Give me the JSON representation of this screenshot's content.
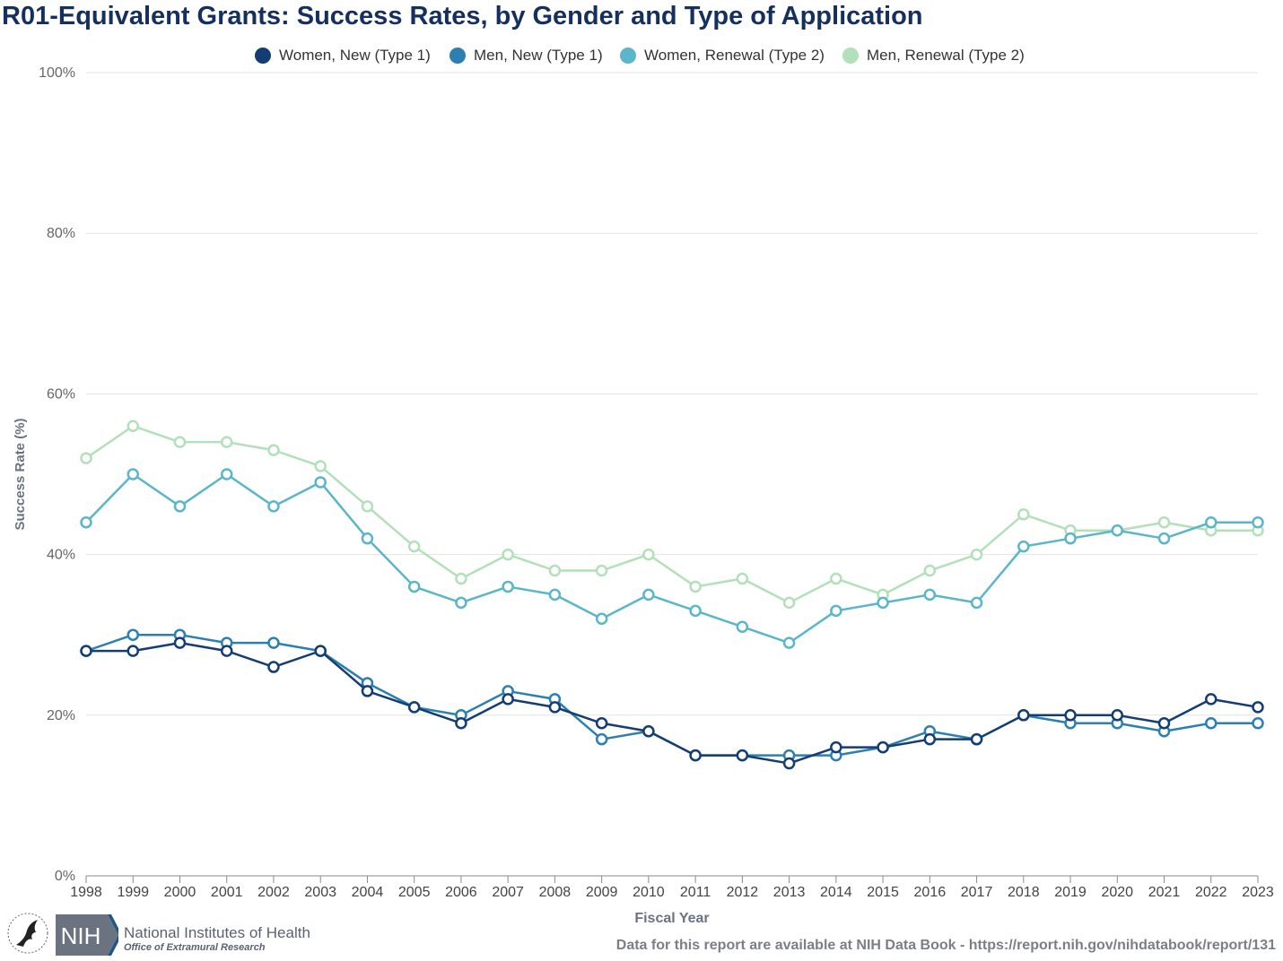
{
  "chart_data": {
    "type": "line",
    "title": "R01-Equivalent Grants: Success Rates, by Gender and Type of Application",
    "xlabel": "Fiscal Year",
    "ylabel": "Success Rate (%)",
    "ylim": [
      0,
      100
    ],
    "yticks": [
      "0%",
      "20%",
      "40%",
      "60%",
      "80%",
      "100%"
    ],
    "grid": true,
    "legend_position": "top",
    "categories": [
      "1998",
      "1999",
      "2000",
      "2001",
      "2002",
      "2003",
      "2004",
      "2005",
      "2006",
      "2007",
      "2008",
      "2009",
      "2010",
      "2011",
      "2012",
      "2013",
      "2014",
      "2015",
      "2016",
      "2017",
      "2018",
      "2019",
      "2020",
      "2021",
      "2022",
      "2023"
    ],
    "series": [
      {
        "name": "Women, New (Type 1)",
        "color": "#143d73",
        "values": [
          28,
          28,
          29,
          28,
          26,
          28,
          23,
          21,
          19,
          22,
          21,
          19,
          18,
          15,
          15,
          14,
          16,
          16,
          17,
          17,
          20,
          20,
          20,
          19,
          22,
          21
        ]
      },
      {
        "name": "Men, New (Type 1)",
        "color": "#2b7fb1",
        "values": [
          28,
          30,
          30,
          29,
          29,
          28,
          24,
          21,
          20,
          23,
          22,
          17,
          18,
          15,
          15,
          15,
          15,
          16,
          18,
          17,
          20,
          19,
          19,
          18,
          19,
          19
        ]
      },
      {
        "name": "Women, Renewal (Type 2)",
        "color": "#5ab6c8",
        "values": [
          44,
          50,
          46,
          50,
          46,
          49,
          42,
          36,
          34,
          36,
          35,
          32,
          35,
          33,
          31,
          29,
          33,
          34,
          35,
          34,
          41,
          42,
          43,
          42,
          44,
          44
        ]
      },
      {
        "name": "Men, Renewal (Type 2)",
        "color": "#b2e0b8",
        "values": [
          52,
          56,
          54,
          54,
          53,
          51,
          46,
          41,
          37,
          40,
          38,
          38,
          40,
          36,
          37,
          34,
          37,
          35,
          38,
          40,
          45,
          43,
          43,
          44,
          43,
          43
        ]
      }
    ]
  },
  "footer": {
    "org_name": "National Institutes of Health",
    "org_office": "Office of Extramural Research",
    "logo_text": "NIH",
    "source_note": "Data for this report are available at NIH Data Book - https://report.nih.gov/nihdatabook/report/131"
  }
}
